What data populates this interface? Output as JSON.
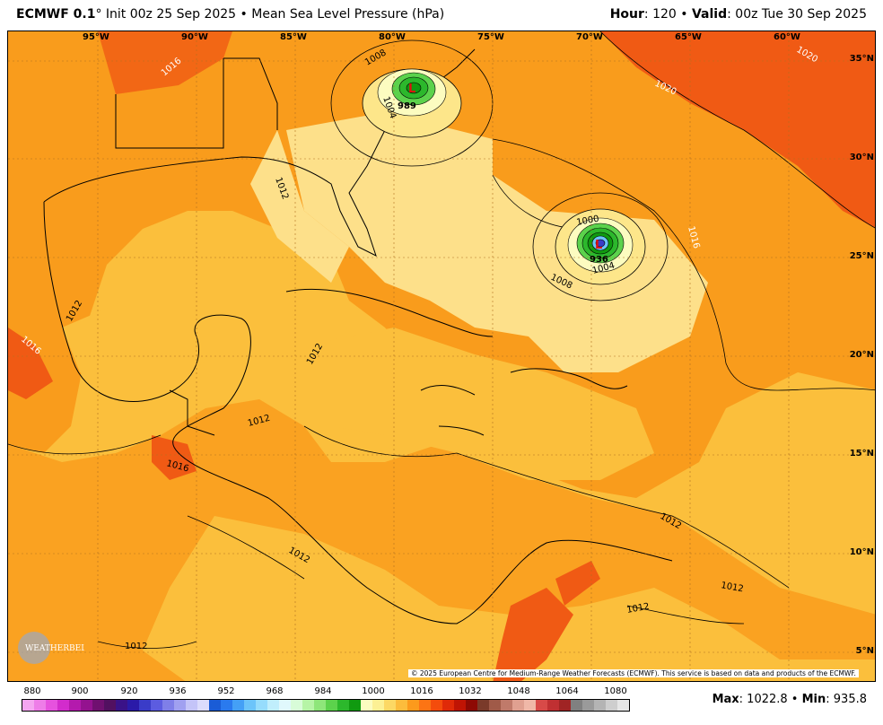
{
  "header": {
    "model": "ECMWF 0.1",
    "degree": "°",
    "init": " Init 00z 25 Sep 2025",
    "bullet": " • ",
    "field": "Mean Sea Level Pressure (hPa)",
    "hour_label": "Hour",
    "hour_value": ": 120",
    "valid_label": "Valid",
    "valid_value": ": 00z Tue 30 Sep 2025"
  },
  "lon_labels": [
    "95°W",
    "90°W",
    "85°W",
    "80°W",
    "75°W",
    "70°W",
    "65°W",
    "60°W"
  ],
  "lat_labels": [
    "35°N",
    "30°N",
    "25°N",
    "20°N",
    "15°N",
    "10°N",
    "5°N"
  ],
  "contour_labels": [
    "1020",
    "1020",
    "1016",
    "1016",
    "1016",
    "1016",
    "1012",
    "1012",
    "1012",
    "1012",
    "1012",
    "1012",
    "1012",
    "1012",
    "1012",
    "1008",
    "1008",
    "1004",
    "1004",
    "1000",
    "989",
    "936"
  ],
  "copyright": "© 2025 European Centre for Medium-Range Weather Forecasts (ECMWF). This service is based on data and products of the ECMWF.",
  "colorbar": {
    "ticks": [
      "880",
      "900",
      "920",
      "936",
      "952",
      "968",
      "984",
      "1000",
      "1016",
      "1032",
      "1048",
      "1064",
      "1080"
    ],
    "colors": [
      "#f4a6f0",
      "#ee7de8",
      "#e652de",
      "#d22ccc",
      "#b41aad",
      "#94128f",
      "#701070",
      "#521060",
      "#3a1288",
      "#2a1aa8",
      "#3a3cc8",
      "#5c5ce0",
      "#7f7fe8",
      "#a0a0f0",
      "#c4c4f8",
      "#dcdcfc",
      "#1a5cd6",
      "#2a7aee",
      "#44a0f6",
      "#6cc4fa",
      "#96dcfc",
      "#c0eefc",
      "#e0f8fc",
      "#d8fcd8",
      "#b6f4a6",
      "#8ee67a",
      "#5cd24c",
      "#2cb82c",
      "#109a10",
      "#fcfcc0",
      "#fcf094",
      "#fcd864",
      "#fcbc3c",
      "#fc9a1c",
      "#fc7414",
      "#f44c0c",
      "#e02a08",
      "#c01404",
      "#8e0a04",
      "#7a3a2a",
      "#a05a48",
      "#c07a6a",
      "#e0a090",
      "#f0b8a8",
      "#d84a48",
      "#c03032",
      "#a02424",
      "#808080",
      "#9a9a9a",
      "#b4b4b4",
      "#cecece",
      "#e6e6e6"
    ]
  },
  "stats": {
    "max_label": "Max",
    "max_value": ": 1022.8",
    "sep": " • ",
    "min_label": "Min",
    "min_value": ": 935.8"
  },
  "logo_text": "WEATHERBELL",
  "low_marker": "L",
  "colors": {
    "p1008": "#fde68a",
    "p1012": "#fbbf3c",
    "p1016": "#f99c1c",
    "p1020": "#f05a14",
    "p1024": "#e42a0a"
  }
}
